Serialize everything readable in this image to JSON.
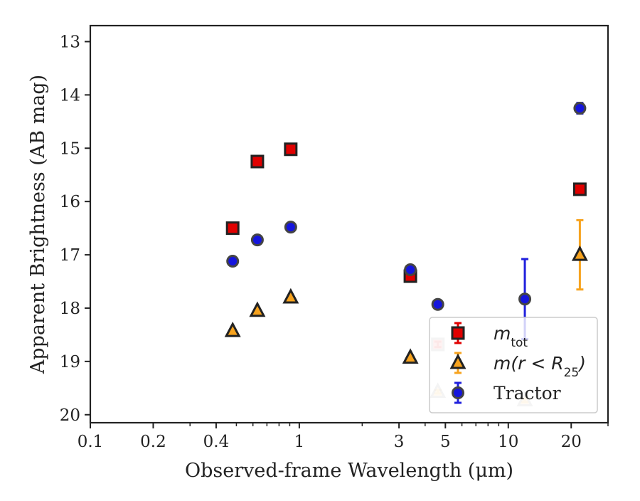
{
  "chart_data": {
    "type": "scatter",
    "xlabel": "Observed-frame Wavelength (μm)",
    "ylabel": "Apparent Brightness (AB mag)",
    "xscale": "log",
    "xlim": [
      0.1,
      30
    ],
    "ylim": [
      20.15,
      12.7
    ],
    "y_inverted": true,
    "grid": false,
    "legend_position": "lower right",
    "x_ticks": [
      {
        "value": 0.1,
        "label": "0.1"
      },
      {
        "value": 0.2,
        "label": "0.2"
      },
      {
        "value": 0.4,
        "label": "0.4"
      },
      {
        "value": 1,
        "label": "1"
      },
      {
        "value": 3,
        "label": "3"
      },
      {
        "value": 5,
        "label": "5"
      },
      {
        "value": 10,
        "label": "10"
      },
      {
        "value": 20,
        "label": "20"
      }
    ],
    "y_ticks": [
      {
        "value": 13,
        "label": "13"
      },
      {
        "value": 14,
        "label": "14"
      },
      {
        "value": 15,
        "label": "15"
      },
      {
        "value": 16,
        "label": "16"
      },
      {
        "value": 17,
        "label": "17"
      },
      {
        "value": 18,
        "label": "18"
      },
      {
        "value": 19,
        "label": "19"
      },
      {
        "value": 20,
        "label": "20"
      }
    ],
    "series": [
      {
        "legend_label": "m_tot",
        "marker": "square",
        "color": "#e00000",
        "edge_color": "#222222",
        "errorbar_color": "#e00000",
        "points": [
          {
            "x": 0.48,
            "y": 16.5,
            "yerr": 0.05
          },
          {
            "x": 0.63,
            "y": 15.25,
            "yerr": 0.05
          },
          {
            "x": 0.91,
            "y": 15.02,
            "yerr": 0.05
          },
          {
            "x": 3.4,
            "y": 17.4,
            "yerr": 0.05
          },
          {
            "x": 4.6,
            "y": 18.68,
            "yerr": 0.05,
            "faded": true
          },
          {
            "x": 22.0,
            "y": 15.77,
            "yerr": 0.05
          }
        ]
      },
      {
        "legend_label": "m(r<R_25)",
        "marker": "triangle",
        "color": "#f7a31e",
        "edge_color": "#222222",
        "errorbar_color": "#f7a31e",
        "points": [
          {
            "x": 0.48,
            "y": 18.43,
            "yerr": 0.03
          },
          {
            "x": 0.63,
            "y": 18.05,
            "yerr": 0.03
          },
          {
            "x": 0.91,
            "y": 17.8,
            "yerr": 0.03
          },
          {
            "x": 3.4,
            "y": 18.93,
            "yerr": 0.03
          },
          {
            "x": 4.6,
            "y": 19.57,
            "yerr": 0.03,
            "faded": true
          },
          {
            "x": 12.0,
            "y": 19.73,
            "yerr": 0.03,
            "faded": true
          },
          {
            "x": 22.0,
            "y": 17.0,
            "yerr": 0.65
          }
        ]
      },
      {
        "legend_label": "Tractor",
        "marker": "circle",
        "color": "#1515dd",
        "edge_color": "#444444",
        "errorbar_color": "#2020dd",
        "points": [
          {
            "x": 0.48,
            "y": 17.12,
            "yerr": 0.08
          },
          {
            "x": 0.63,
            "y": 16.72,
            "yerr": 0.08
          },
          {
            "x": 0.91,
            "y": 16.48,
            "yerr": 0.08
          },
          {
            "x": 3.4,
            "y": 17.28,
            "yerr": 0.08
          },
          {
            "x": 4.6,
            "y": 17.93,
            "yerr": 0.08
          },
          {
            "x": 12.0,
            "y": 17.83,
            "yerr": 0.75
          },
          {
            "x": 22.0,
            "y": 14.25,
            "yerr": 0.1
          }
        ]
      }
    ],
    "legend": {
      "entries": [
        {
          "marker": "square",
          "text": "m",
          "sub": "tot",
          "suffix": ""
        },
        {
          "marker": "triangle",
          "text": "m(r < R",
          "sub": "25",
          "suffix": ")"
        },
        {
          "marker": "circle",
          "text": "Tractor",
          "sub": "",
          "suffix": ""
        }
      ]
    }
  }
}
